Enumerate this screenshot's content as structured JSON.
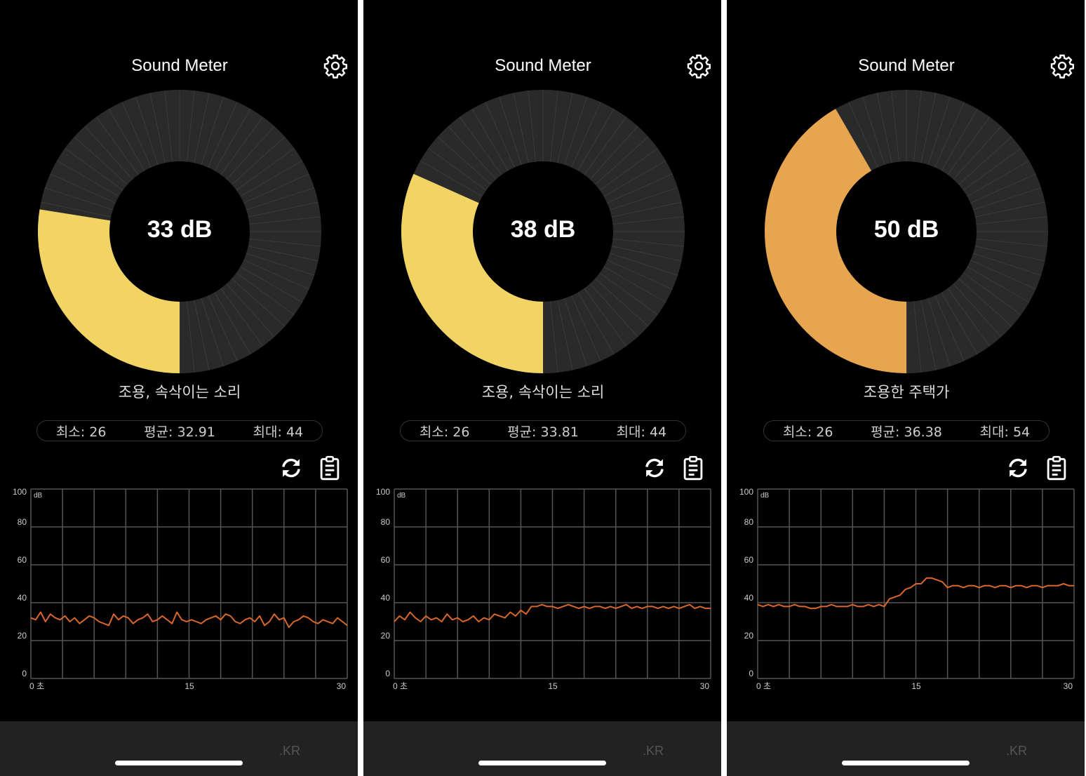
{
  "app_title": "Sound Meter",
  "colors": {
    "ring_bg": "#2a2a2a",
    "ring_line": "#3b3b3b",
    "line": "#d9662a",
    "grid": "#555555"
  },
  "gauge_max_db": 120,
  "panels": [
    {
      "reading": "33 dB",
      "db": 33,
      "fill_color": "#f2d464",
      "description": "조용, 속삭이는 소리",
      "stats": {
        "min": "최소: 26",
        "avg": "평균: 32.91",
        "max": "최대: 44"
      },
      "chart_data": {
        "type": "line",
        "ylabel": "dB",
        "yticks": [
          "100",
          "80",
          "60",
          "40",
          "20",
          "0"
        ],
        "ylim": [
          0,
          100
        ],
        "xlim": [
          0,
          30
        ],
        "xticks": [
          "0 초",
          "15",
          "30"
        ],
        "grid": true,
        "values": [
          32,
          31,
          35,
          30,
          34,
          32,
          31,
          33,
          30,
          32,
          29,
          31,
          33,
          32,
          30,
          29,
          28,
          34,
          31,
          33,
          32,
          29,
          31,
          32,
          34,
          30,
          31,
          33,
          31,
          29,
          35,
          31,
          30,
          31,
          30,
          29,
          31,
          32,
          33,
          31,
          34,
          33,
          30,
          29,
          31,
          32,
          30,
          33,
          28,
          30,
          34,
          31,
          32,
          27,
          30,
          31,
          33,
          32,
          30,
          29,
          31,
          30,
          29,
          32,
          30,
          28
        ]
      },
      "watermark": ".KR"
    },
    {
      "reading": "38 dB",
      "db": 38,
      "fill_color": "#f2d464",
      "description": "조용, 속삭이는 소리",
      "stats": {
        "min": "최소: 26",
        "avg": "평균: 33.81",
        "max": "최대: 44"
      },
      "chart_data": {
        "type": "line",
        "ylabel": "dB",
        "yticks": [
          "100",
          "80",
          "60",
          "40",
          "20",
          "0"
        ],
        "ylim": [
          0,
          100
        ],
        "xlim": [
          0,
          30
        ],
        "xticks": [
          "0 초",
          "15",
          "30"
        ],
        "grid": true,
        "values": [
          30,
          33,
          31,
          35,
          32,
          30,
          33,
          31,
          32,
          30,
          34,
          31,
          32,
          30,
          31,
          33,
          30,
          32,
          31,
          34,
          33,
          32,
          35,
          33,
          36,
          34,
          38,
          38,
          39,
          38,
          38,
          37,
          38,
          39,
          38,
          37,
          38,
          37,
          38,
          38,
          37,
          38,
          37,
          38,
          39,
          37,
          38,
          37,
          38,
          38,
          37,
          38,
          37,
          38,
          37,
          38,
          39,
          37,
          38,
          37,
          37
        ]
      },
      "watermark": ".KR"
    },
    {
      "reading": "50 dB",
      "db": 50,
      "fill_color": "#e8a550",
      "description": "조용한 주택가",
      "stats": {
        "min": "최소: 26",
        "avg": "평균: 36.38",
        "max": "최대: 54"
      },
      "chart_data": {
        "type": "line",
        "ylabel": "dB",
        "yticks": [
          "100",
          "80",
          "60",
          "40",
          "20",
          "0"
        ],
        "ylim": [
          0,
          100
        ],
        "xlim": [
          0,
          30
        ],
        "xticks": [
          "0 초",
          "15",
          "30"
        ],
        "grid": true,
        "values": [
          39,
          38,
          39,
          38,
          39,
          38,
          38,
          39,
          38,
          38,
          37,
          37,
          38,
          38,
          39,
          38,
          38,
          38,
          39,
          38,
          38,
          39,
          38,
          39,
          38,
          42,
          43,
          44,
          47,
          48,
          50,
          50,
          53,
          53,
          52,
          51,
          48,
          49,
          49,
          48,
          49,
          49,
          48,
          49,
          49,
          48,
          49,
          49,
          48,
          49,
          49,
          48,
          49,
          49,
          48,
          49,
          49,
          49,
          50,
          49,
          49
        ]
      },
      "watermark": ".KR"
    }
  ]
}
